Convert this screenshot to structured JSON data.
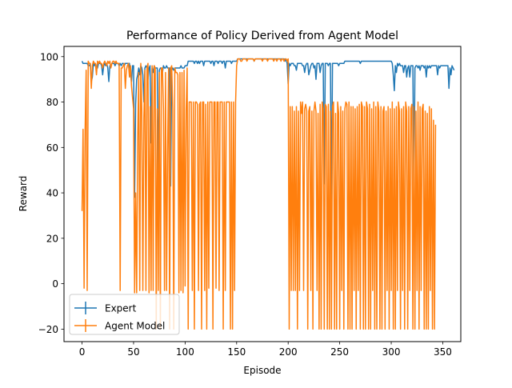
{
  "chart_data": {
    "type": "line",
    "title": "Performance of Policy Derived from Agent Model",
    "xlabel": "Episode",
    "ylabel": "Reward",
    "xlim": [
      -17.5,
      367.5
    ],
    "ylim": [
      -25.5,
      104.5
    ],
    "xticks": [
      0,
      50,
      100,
      150,
      200,
      250,
      300,
      350
    ],
    "yticks": [
      -20,
      0,
      20,
      40,
      60,
      80,
      100
    ],
    "grid": false,
    "legend": "lower-left",
    "series": [
      {
        "name": "Expert",
        "color": "#1f77b4",
        "values": [
          98,
          97,
          97,
          97,
          97,
          97,
          96,
          96,
          97,
          89,
          91,
          97,
          96,
          97,
          95,
          95,
          97,
          97,
          97,
          96,
          92,
          96,
          97,
          96,
          97,
          95,
          89,
          96,
          96,
          97,
          97,
          97,
          96,
          97,
          97,
          97,
          96,
          97,
          96,
          97,
          97,
          96,
          97,
          97,
          97,
          97,
          97,
          92,
          89,
          96,
          96,
          38,
          79,
          90,
          92,
          95,
          92,
          96,
          95,
          92,
          80,
          95,
          96,
          95,
          90,
          95,
          96,
          62,
          95,
          93,
          96,
          95,
          95,
          95,
          40,
          94,
          95,
          95,
          93,
          96,
          95,
          95,
          96,
          95,
          95,
          95,
          43,
          94,
          95,
          94,
          95,
          95,
          95,
          95,
          95,
          95,
          96,
          95,
          95,
          95,
          96,
          96,
          96,
          98,
          98,
          98,
          98,
          98,
          98,
          97,
          98,
          98,
          97,
          98,
          97,
          98,
          98,
          98,
          96,
          98,
          98,
          98,
          98,
          98,
          98,
          97,
          98,
          98,
          96,
          98,
          98,
          98,
          97,
          98,
          98,
          98,
          97,
          98,
          98,
          95,
          98,
          98,
          98,
          98,
          98,
          97,
          98,
          98,
          98,
          98,
          98,
          99,
          99,
          99,
          99,
          99,
          99,
          99,
          99,
          99,
          99,
          99,
          99,
          99,
          99,
          99,
          99,
          98,
          99,
          99,
          99,
          99,
          99,
          99,
          99,
          99,
          99,
          99,
          99,
          99,
          99,
          99,
          99,
          99,
          99,
          99,
          99,
          99,
          99,
          99,
          99,
          99,
          99,
          99,
          99,
          99,
          99,
          98,
          99,
          97,
          88,
          97,
          96,
          97,
          97,
          97,
          96,
          96,
          94,
          97,
          97,
          97,
          97,
          97,
          96,
          96,
          93,
          96,
          97,
          97,
          92,
          94,
          96,
          97,
          97,
          95,
          96,
          90,
          97,
          97,
          97,
          93,
          96,
          97,
          97,
          44,
          97,
          97,
          97,
          96,
          97,
          97,
          36,
          97,
          97,
          97,
          97,
          97,
          97,
          96,
          97,
          97,
          97,
          97,
          97,
          98,
          98,
          98,
          98,
          98,
          98,
          98,
          98,
          98,
          98,
          98,
          98,
          98,
          98,
          98,
          97,
          98,
          98,
          98,
          98,
          98,
          98,
          98,
          98,
          98,
          98,
          98,
          98,
          98,
          98,
          98,
          98,
          98,
          98,
          98,
          98,
          98,
          98,
          98,
          98,
          98,
          98,
          98,
          98,
          98,
          98,
          97,
          92,
          85,
          96,
          93,
          97,
          96,
          97,
          96,
          96,
          96,
          93,
          96,
          96,
          91,
          95,
          96,
          91,
          96,
          96,
          96,
          37,
          95,
          96,
          96,
          95,
          96,
          94,
          96,
          96,
          96,
          95,
          96,
          91,
          96,
          95,
          96,
          95,
          96,
          96,
          96,
          96,
          96,
          96,
          92,
          96,
          95,
          96,
          96,
          96,
          96,
          96,
          96,
          96,
          96,
          86,
          95,
          92,
          96,
          95,
          94
        ]
      },
      {
        "name": "Agent Model",
        "color": "#ff7f0e",
        "values": [
          32,
          68,
          -2,
          68,
          94,
          -3,
          98,
          97,
          97,
          86,
          96,
          98,
          97,
          97,
          92,
          98,
          97,
          98,
          97,
          97,
          95,
          97,
          98,
          97,
          96,
          98,
          97,
          98,
          95,
          97,
          98,
          98,
          97,
          98,
          97,
          97,
          97,
          -3,
          95,
          95,
          96,
          97,
          86,
          94,
          96,
          97,
          91,
          96,
          87,
          82,
          77,
          -4,
          40,
          -4,
          63,
          93,
          -3,
          97,
          76,
          -3,
          73,
          94,
          -3,
          95,
          97,
          -4,
          78,
          -3,
          96,
          -3,
          96,
          95,
          -20,
          77,
          -3,
          93,
          -20,
          95,
          95,
          77,
          -3,
          93,
          -3,
          58,
          95,
          -20,
          95,
          96,
          77,
          -20,
          95,
          93,
          93,
          92,
          -4,
          93,
          -3,
          93,
          -4,
          94,
          -1,
          77,
          95,
          -20,
          80,
          80,
          80,
          -3,
          80,
          -20,
          80,
          80,
          79,
          -3,
          79,
          80,
          -20,
          80,
          80,
          -3,
          79,
          -20,
          80,
          -2,
          80,
          80,
          80,
          -20,
          80,
          80,
          -2,
          80,
          80,
          -3,
          80,
          80,
          80,
          -20,
          80,
          -3,
          80,
          80,
          80,
          80,
          -20,
          80,
          -20,
          80,
          -3,
          80,
          96,
          99,
          99,
          99,
          98,
          98,
          99,
          99,
          99,
          99,
          98,
          99,
          99,
          99,
          99,
          99,
          99,
          98,
          99,
          99,
          99,
          99,
          99,
          99,
          99,
          98,
          99,
          99,
          99,
          99,
          98,
          99,
          99,
          99,
          99,
          99,
          98,
          99,
          99,
          98,
          99,
          99,
          99,
          98,
          99,
          99,
          98,
          99,
          99,
          98,
          99,
          -20,
          78,
          -3,
          78,
          -3,
          76,
          -3,
          78,
          -20,
          76,
          -3,
          80,
          75,
          80,
          -3,
          77,
          79,
          76,
          -20,
          76,
          78,
          -3,
          76,
          -20,
          76,
          80,
          76,
          -3,
          75,
          -20,
          79,
          -20,
          80,
          77,
          -20,
          79,
          78,
          -20,
          79,
          -20,
          76,
          -20,
          78,
          80,
          -20,
          75,
          -20,
          80,
          75,
          -20,
          78,
          -3,
          76,
          -20,
          77,
          80,
          79,
          -20,
          80,
          -20,
          78,
          -20,
          78,
          -3,
          77,
          -20,
          78,
          -3,
          79,
          -20,
          80,
          78,
          -20,
          78,
          -20,
          80,
          77,
          -20,
          79,
          -20,
          77,
          -3,
          80,
          -20,
          78,
          -20,
          80,
          76,
          -20,
          78,
          -20,
          76,
          78,
          -20,
          76,
          -3,
          78,
          -20,
          77,
          -3,
          80,
          -20,
          77,
          -20,
          78,
          -3,
          80,
          76,
          -20,
          77,
          -3,
          78,
          -20,
          80,
          76,
          -20,
          78,
          -3,
          77,
          79,
          -20,
          78,
          -20,
          76,
          -3,
          80,
          -20,
          78,
          -3,
          77,
          79,
          -20,
          76,
          -20,
          75,
          -20,
          78,
          -3,
          77,
          -20,
          72,
          -20,
          70
        ]
      }
    ]
  }
}
